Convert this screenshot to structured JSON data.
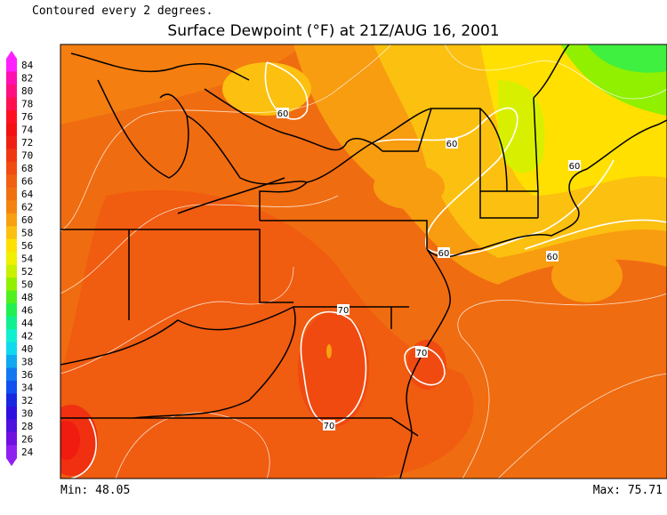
{
  "header": {
    "note": "Contoured every 2 degrees.",
    "title": "Surface Dewpoint (°F) at 21Z/AUG 16, 2001"
  },
  "colorbar": {
    "ticks": [
      84,
      82,
      80,
      78,
      76,
      74,
      72,
      70,
      68,
      66,
      64,
      62,
      60,
      58,
      56,
      54,
      52,
      50,
      48,
      46,
      44,
      42,
      40,
      38,
      36,
      34,
      32,
      30,
      28,
      26,
      24
    ],
    "colors": [
      "#ff20ff",
      "#ff10b0",
      "#ff1080",
      "#ff1050",
      "#ff1020",
      "#f51010",
      "#f02010",
      "#f03810",
      "#f04c10",
      "#f06010",
      "#f07010",
      "#f48410",
      "#f8a010",
      "#fcc010",
      "#ffe000",
      "#f0f000",
      "#c8f000",
      "#90f000",
      "#50f020",
      "#20f050",
      "#10f090",
      "#10f0d0",
      "#10d8f0",
      "#10a8f0",
      "#1078f0",
      "#1050f0",
      "#1828e0",
      "#3010e0",
      "#5010e0",
      "#7010e0",
      "#9020f0"
    ]
  },
  "contour_labels": [
    60,
    60,
    60,
    60,
    60,
    70,
    70,
    70
  ],
  "footer": {
    "min": "Min: 48.05",
    "max": "Max: 75.71"
  }
}
